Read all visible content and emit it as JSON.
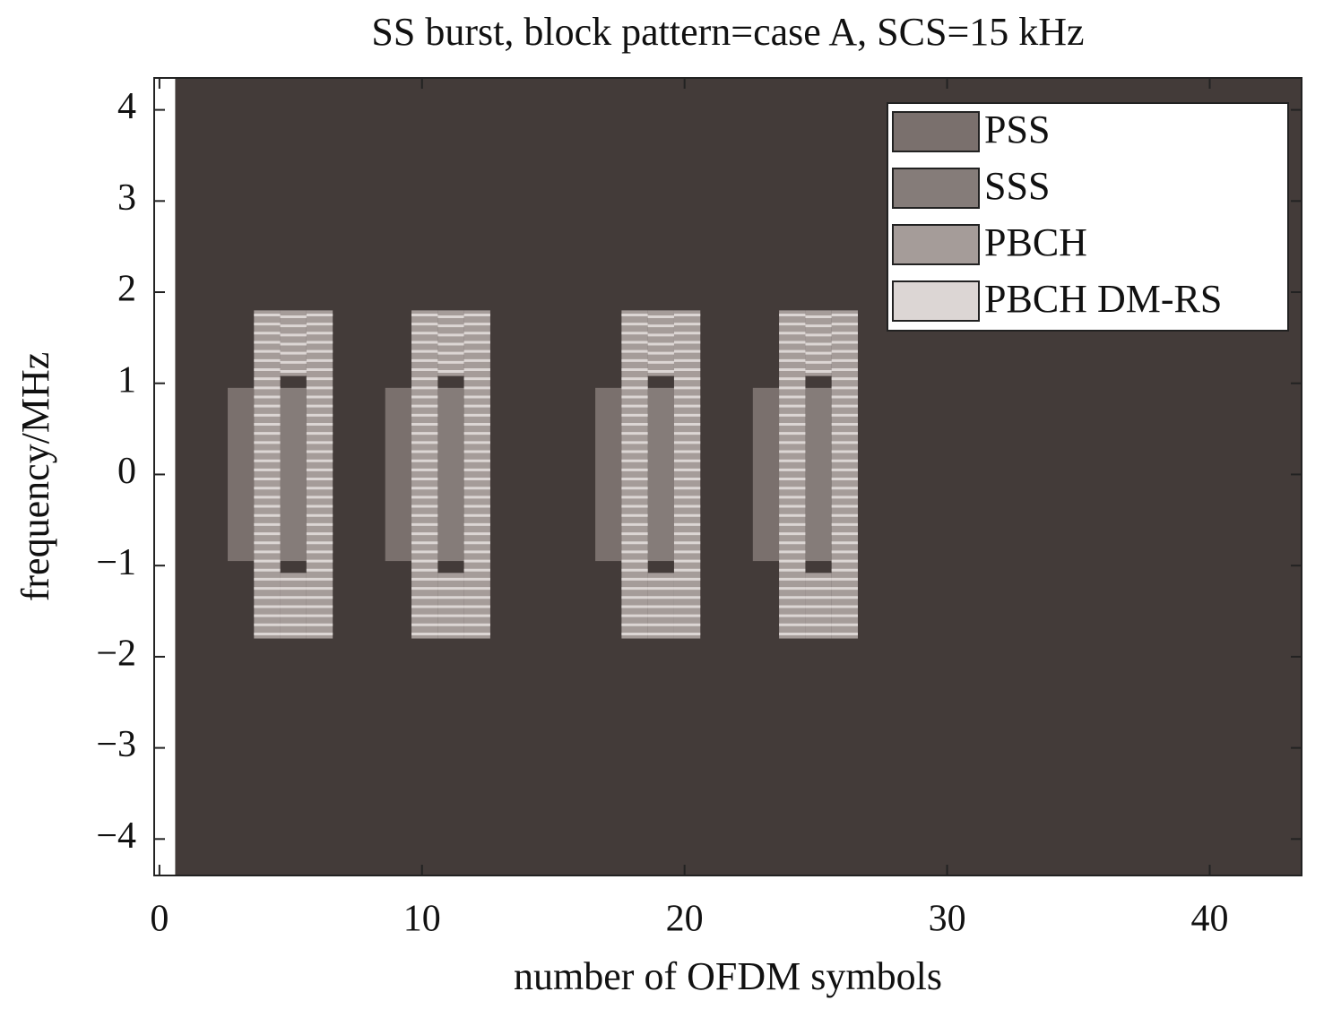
{
  "chart_data": {
    "type": "resource-grid",
    "title": "SS burst, block pattern=case A, SCS=15 kHz",
    "xlabel": "number of OFDM symbols",
    "ylabel": "frequency/MHz",
    "xlim": [
      -0.2,
      43.5
    ],
    "ylim": [
      -4.4,
      4.35
    ],
    "xticks": [
      0,
      10,
      20,
      30,
      40
    ],
    "yticks": [
      {
        "value": -4,
        "label": "−4"
      },
      {
        "value": -3,
        "label": "−3"
      },
      {
        "value": -2,
        "label": "−2"
      },
      {
        "value": -1,
        "label": "−1"
      },
      0,
      1,
      2,
      3,
      4
    ],
    "background": {
      "color": "#433b39",
      "x": [
        0.6,
        43.5
      ]
    },
    "legend": "upper right",
    "series": [
      {
        "name": "PSS",
        "color": "#7a706d",
        "rects": [
          [
            2.6,
            3.6,
            -0.95,
            0.95
          ],
          [
            8.6,
            9.6,
            -0.95,
            0.95
          ],
          [
            16.6,
            17.6,
            -0.95,
            0.95
          ],
          [
            22.6,
            23.6,
            -0.95,
            0.95
          ]
        ]
      },
      {
        "name": "SSS",
        "color": "#857c79",
        "rects": [
          [
            4.6,
            5.6,
            -0.95,
            0.95
          ],
          [
            10.6,
            11.6,
            -0.95,
            0.95
          ],
          [
            18.6,
            19.6,
            -0.95,
            0.95
          ],
          [
            24.6,
            25.6,
            -0.95,
            0.95
          ]
        ]
      },
      {
        "name": "PBCH",
        "color": "#a59c99",
        "rects": [
          [
            3.6,
            4.6,
            -1.8,
            1.8
          ],
          [
            4.6,
            5.6,
            1.08,
            1.8
          ],
          [
            4.6,
            5.6,
            -1.8,
            -1.08
          ],
          [
            5.6,
            6.6,
            -1.8,
            1.8
          ],
          [
            9.6,
            10.6,
            -1.8,
            1.8
          ],
          [
            10.6,
            11.6,
            1.08,
            1.8
          ],
          [
            10.6,
            11.6,
            -1.8,
            -1.08
          ],
          [
            11.6,
            12.6,
            -1.8,
            1.8
          ],
          [
            17.6,
            18.6,
            -1.8,
            1.8
          ],
          [
            18.6,
            19.6,
            1.08,
            1.8
          ],
          [
            18.6,
            19.6,
            -1.8,
            -1.08
          ],
          [
            19.6,
            20.6,
            -1.8,
            1.8
          ],
          [
            23.6,
            24.6,
            -1.8,
            1.8
          ],
          [
            24.6,
            25.6,
            1.08,
            1.8
          ],
          [
            24.6,
            25.6,
            -1.8,
            -1.08
          ],
          [
            25.6,
            26.6,
            -1.8,
            1.8
          ]
        ]
      },
      {
        "name": "PBCH DM-RS",
        "color": "#dcd6d4",
        "spacing": 0.1,
        "rects": [
          [
            3.6,
            4.6,
            -1.8,
            1.8
          ],
          [
            4.6,
            5.6,
            1.08,
            1.8
          ],
          [
            4.6,
            5.6,
            -1.8,
            -1.08
          ],
          [
            5.6,
            6.6,
            -1.8,
            1.8
          ],
          [
            9.6,
            10.6,
            -1.8,
            1.8
          ],
          [
            10.6,
            11.6,
            1.08,
            1.8
          ],
          [
            10.6,
            11.6,
            -1.8,
            -1.08
          ],
          [
            11.6,
            12.6,
            -1.8,
            1.8
          ],
          [
            17.6,
            18.6,
            -1.8,
            1.8
          ],
          [
            18.6,
            19.6,
            1.08,
            1.8
          ],
          [
            18.6,
            19.6,
            -1.8,
            -1.08
          ],
          [
            19.6,
            20.6,
            -1.8,
            1.8
          ],
          [
            23.6,
            24.6,
            -1.8,
            1.8
          ],
          [
            24.6,
            25.6,
            1.08,
            1.8
          ],
          [
            24.6,
            25.6,
            -1.8,
            -1.08
          ],
          [
            25.6,
            26.6,
            -1.8,
            1.8
          ]
        ]
      }
    ]
  }
}
